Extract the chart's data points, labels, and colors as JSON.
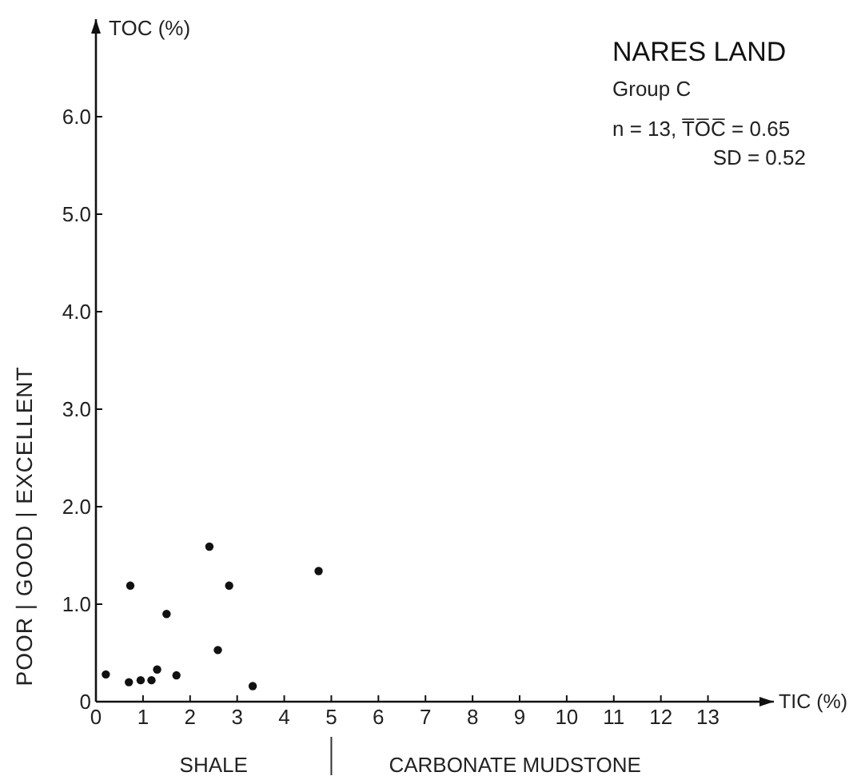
{
  "chart_data": {
    "type": "scatter",
    "title": "NARES LAND",
    "subtitle": "Group C",
    "xlabel": "TIC (%)",
    "ylabel": "TOC (%)",
    "annotations": [
      "n = 13, T̅O̅C̅ = 0.65",
      "SD = 0.52",
      "POOR | GOOD | EXCELLENT",
      "SHALE",
      "CARBONATE MUDSTONE"
    ],
    "x": [
      0.21,
      0.7,
      0.73,
      0.95,
      1.18,
      1.3,
      1.5,
      1.71,
      2.41,
      2.59,
      2.83,
      3.33,
      4.73
    ],
    "values": [
      0.28,
      0.2,
      1.19,
      0.22,
      0.22,
      0.33,
      0.9,
      0.27,
      1.59,
      0.53,
      1.19,
      0.16,
      1.34
    ],
    "color": "#111111",
    "marker": "circle",
    "xlim": [
      0,
      14.4
    ],
    "ylim": [
      0,
      7
    ],
    "xticks": [
      0,
      1,
      2,
      3,
      4,
      5,
      6,
      7,
      8,
      9,
      10,
      11,
      12,
      13
    ],
    "yticks": [
      0,
      {
        "value": 1,
        "label": "1.0"
      },
      {
        "value": 2,
        "label": "2.0"
      },
      {
        "value": 3,
        "label": "3.0"
      },
      {
        "value": 4,
        "label": "4.0"
      },
      {
        "value": 5,
        "label": "5.0"
      },
      {
        "value": 6,
        "label": "6.0"
      }
    ],
    "grid": false
  }
}
